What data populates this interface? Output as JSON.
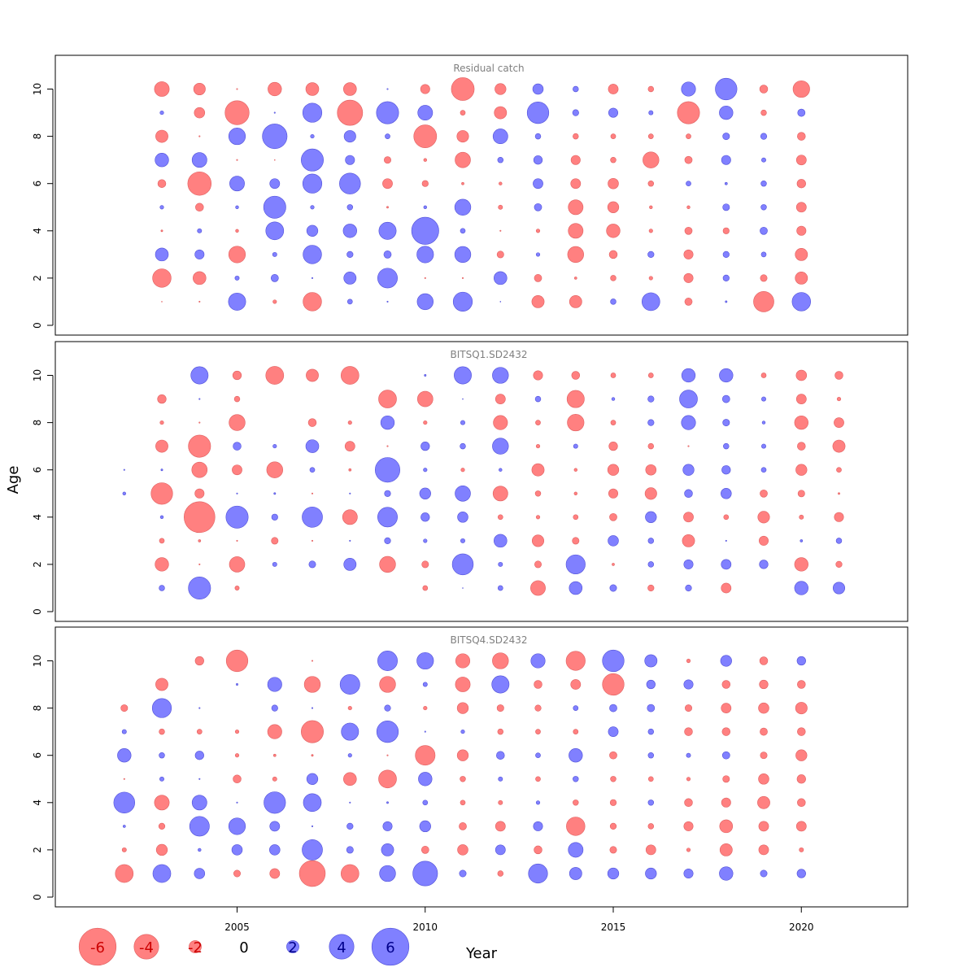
{
  "chart_data": {
    "type": "scatter",
    "subtype": "bubble",
    "xlabel": "Year",
    "ylabel": "Age",
    "xlim": [
      2000,
      2023
    ],
    "ylim": [
      0,
      11
    ],
    "x_ticks": [
      2005,
      2010,
      2015,
      2020
    ],
    "y_ticks": [
      0,
      2,
      4,
      6,
      8,
      10
    ],
    "x_tick_labels": [
      "2005",
      "2010",
      "2015",
      "2020"
    ],
    "y_tick_labels": [
      "0",
      "2",
      "4",
      "6",
      "8",
      "10"
    ],
    "colors": {
      "negative": "#ff8080",
      "positive": "#8080ff",
      "negative_text": "#cc0000",
      "positive_text": "#00008b"
    },
    "legend": {
      "placement": "bottom-left",
      "values": [
        -6,
        -4,
        -2,
        0,
        2,
        4,
        6
      ],
      "labels": [
        "-6",
        "-4",
        "-2",
        "0",
        "2",
        "4",
        "6"
      ]
    },
    "ages": [
      1,
      2,
      3,
      4,
      5,
      6,
      7,
      8,
      9,
      10
    ],
    "panels": [
      {
        "title": "Residual catch",
        "years": [
          2003,
          2004,
          2005,
          2006,
          2007,
          2008,
          2009,
          2010,
          2011,
          2012,
          2013,
          2014,
          2015,
          2016,
          2017,
          2018,
          2019,
          2020
        ],
        "residuals": [
          [
            -0.1,
            -0.2,
            2.8,
            -0.6,
            -3.0,
            0.8,
            0.2,
            2.6,
            3.1,
            0.1,
            -2.0,
            -2.0,
            0.9,
            2.9,
            -1.2,
            0.3,
            -3.3,
            3.0
          ],
          [
            -3.0,
            -2.1,
            0.7,
            1.2,
            0.2,
            2.0,
            3.2,
            -0.2,
            -0.2,
            2.1,
            -1.2,
            -0.4,
            -0.9,
            -0.6,
            -1.5,
            1.0,
            -1.1,
            -2.0
          ],
          [
            2.1,
            1.5,
            -2.7,
            0.7,
            3.0,
            1.0,
            1.2,
            2.7,
            2.6,
            -1.1,
            0.6,
            -2.6,
            -1.3,
            1.0,
            -1.5,
            1.0,
            0.8,
            -2.0
          ],
          [
            -0.3,
            0.7,
            -0.5,
            2.9,
            1.8,
            2.2,
            2.8,
            4.4,
            0.8,
            -0.2,
            -0.6,
            -2.4,
            -2.2,
            -0.6,
            -1.2,
            -1.0,
            1.2,
            -1.5
          ],
          [
            0.6,
            -1.3,
            0.5,
            3.6,
            0.6,
            0.9,
            -0.3,
            0.5,
            2.6,
            -0.7,
            1.2,
            -2.4,
            -1.8,
            -0.5,
            -0.5,
            1.1,
            0.9,
            -1.6
          ],
          [
            -1.3,
            -3.8,
            2.4,
            1.6,
            3.1,
            3.4,
            -1.6,
            -1.0,
            -0.4,
            -0.5,
            1.6,
            -1.6,
            -1.7,
            -0.9,
            0.8,
            0.4,
            0.9,
            -1.4
          ],
          [
            2.2,
            2.4,
            -0.2,
            -0.1,
            3.6,
            1.5,
            -1.1,
            -0.5,
            -2.5,
            0.9,
            1.4,
            -1.5,
            -0.9,
            -2.6,
            -1.2,
            1.5,
            0.7,
            -1.6
          ],
          [
            -2.0,
            -0.2,
            2.7,
            4.0,
            0.6,
            1.9,
            0.8,
            -3.7,
            -1.9,
            2.4,
            0.9,
            -0.9,
            -0.8,
            -0.8,
            -0.8,
            1.1,
            1.0,
            -1.3
          ],
          [
            0.6,
            -1.7,
            -3.9,
            0.2,
            3.1,
            -4.1,
            3.6,
            2.4,
            -0.8,
            -2.0,
            3.5,
            1.0,
            1.5,
            0.7,
            -3.6,
            2.2,
            -0.9,
            1.2
          ],
          [
            -2.4,
            -1.9,
            -0.2,
            -2.2,
            -2.1,
            -2.1,
            0.2,
            -1.5,
            -3.7,
            -1.8,
            1.7,
            0.9,
            -1.6,
            -0.9,
            2.3,
            3.5,
            -1.3,
            -2.7
          ]
        ]
      },
      {
        "title": "BITSQ1.SD2432",
        "years": [
          2002,
          2003,
          2004,
          2005,
          2006,
          2007,
          2008,
          2009,
          2010,
          2011,
          2012,
          2013,
          2014,
          2015,
          2016,
          2017,
          2018,
          2019,
          2020,
          2021
        ],
        "residuals": [
          [
            null,
            0.9,
            3.6,
            -0.7,
            null,
            null,
            null,
            null,
            -0.8,
            0.1,
            0.8,
            -2.4,
            2.1,
            1.1,
            -1.0,
            1.0,
            -1.6,
            null,
            2.2,
            1.9
          ],
          [
            null,
            -2.2,
            -0.2,
            -2.5,
            0.7,
            1.1,
            2.0,
            -2.6,
            -1.1,
            3.4,
            0.7,
            -1.1,
            3.1,
            -0.4,
            0.9,
            1.5,
            1.6,
            1.4,
            -2.2,
            -1.0
          ],
          [
            null,
            -0.8,
            -0.4,
            -0.2,
            -1.1,
            -0.2,
            0.2,
            1.0,
            0.6,
            0.7,
            2.1,
            -1.9,
            -1.1,
            1.7,
            0.9,
            -2.0,
            0.2,
            -1.5,
            0.4,
            0.9
          ],
          [
            null,
            0.5,
            -5.0,
            3.6,
            1.0,
            3.3,
            -2.4,
            3.2,
            1.4,
            1.7,
            -0.8,
            -0.6,
            -0.8,
            -1.2,
            1.8,
            -1.6,
            -0.8,
            -1.9,
            -0.7,
            -1.5
          ],
          [
            0.5,
            -3.5,
            -1.5,
            0.2,
            0.3,
            -0.2,
            0.2,
            1.0,
            1.8,
            2.5,
            -2.4,
            -0.9,
            -0.5,
            -1.5,
            -1.9,
            1.3,
            1.7,
            -1.2,
            -1.1,
            -0.3
          ],
          [
            0.2,
            0.3,
            -2.5,
            -1.6,
            -2.6,
            0.8,
            -0.4,
            4.0,
            0.6,
            -0.6,
            0.5,
            -2.0,
            -0.5,
            -1.8,
            -1.7,
            1.8,
            1.4,
            0.8,
            -1.8,
            -0.8
          ],
          [
            null,
            -2.0,
            -3.6,
            1.3,
            0.6,
            2.1,
            -1.6,
            -0.2,
            1.4,
            0.9,
            2.6,
            -0.6,
            0.7,
            -1.4,
            -0.9,
            -0.2,
            0.9,
            0.7,
            -1.3,
            -2.0
          ],
          [
            null,
            -0.6,
            -0.2,
            -2.6,
            null,
            -1.3,
            -0.6,
            2.2,
            -0.6,
            0.7,
            -2.3,
            -0.8,
            -2.7,
            -0.8,
            1.0,
            2.3,
            1.1,
            0.5,
            -2.2,
            -1.6
          ],
          [
            null,
            -1.4,
            0.2,
            -0.9,
            null,
            null,
            null,
            -2.9,
            -2.5,
            0.1,
            -1.6,
            0.9,
            -2.8,
            0.5,
            1.0,
            2.9,
            1.2,
            0.7,
            -1.6,
            -0.6
          ],
          [
            null,
            null,
            2.8,
            -1.4,
            -2.9,
            -2.0,
            -2.9,
            null,
            0.3,
            2.8,
            2.6,
            -1.5,
            -1.3,
            -0.8,
            -0.8,
            2.2,
            2.2,
            -0.8,
            -1.7,
            -1.3
          ]
        ]
      },
      {
        "title": "BITSQ4.SD2432",
        "years": [
          2002,
          2003,
          2004,
          2005,
          2006,
          2007,
          2008,
          2009,
          2010,
          2011,
          2012,
          2013,
          2014,
          2015,
          2016,
          2017,
          2018,
          2019,
          2020
        ],
        "residuals": [
          [
            -2.9,
            2.9,
            1.7,
            -1.1,
            -1.6,
            -4.2,
            -2.9,
            2.6,
            4.0,
            1.1,
            -0.9,
            3.1,
            2.0,
            1.8,
            1.8,
            1.5,
            2.2,
            1.1,
            1.4
          ],
          [
            -0.7,
            -1.8,
            0.5,
            1.7,
            1.7,
            3.3,
            1.1,
            2.0,
            -1.2,
            -1.7,
            1.6,
            -1.3,
            2.4,
            -1.1,
            -1.6,
            -0.6,
            -2.0,
            -1.6,
            -0.7
          ],
          [
            0.4,
            -1.0,
            3.2,
            2.7,
            1.6,
            0.2,
            1.0,
            1.5,
            1.8,
            -1.2,
            -1.6,
            1.5,
            -3.0,
            -1.0,
            -0.9,
            -1.5,
            -2.1,
            -1.6,
            -1.6
          ],
          [
            3.4,
            -2.4,
            2.4,
            0.2,
            3.5,
            2.9,
            0.2,
            0.3,
            0.8,
            -0.8,
            -0.7,
            0.6,
            -0.9,
            -1.0,
            0.9,
            -1.3,
            -1.5,
            -2.0,
            -1.3
          ],
          [
            -0.2,
            0.7,
            0.2,
            -1.3,
            -0.7,
            1.8,
            -2.1,
            -2.9,
            2.2,
            -0.9,
            0.7,
            -0.8,
            0.9,
            -0.9,
            -0.8,
            -0.6,
            -1.1,
            -1.7,
            -1.4
          ],
          [
            2.2,
            0.9,
            1.4,
            -0.6,
            -0.4,
            -0.3,
            0.6,
            -0.2,
            -3.2,
            -1.8,
            1.3,
            0.8,
            2.2,
            -1.2,
            0.9,
            0.7,
            1.2,
            -1.1,
            -1.8
          ],
          [
            0.7,
            -0.9,
            -0.8,
            -0.6,
            -2.3,
            -3.6,
            2.8,
            3.5,
            0.2,
            0.6,
            -0.9,
            -0.8,
            -0.8,
            1.6,
            0.9,
            -1.3,
            -1.3,
            -1.2,
            -1.3
          ],
          [
            -1.1,
            3.1,
            0.2,
            null,
            1.0,
            0.2,
            -0.6,
            1.0,
            -0.6,
            -1.8,
            -1.1,
            -1.0,
            0.8,
            1.2,
            1.2,
            -1.1,
            -1.6,
            -1.7,
            -1.9
          ],
          [
            null,
            -2.0,
            null,
            0.3,
            2.3,
            -2.6,
            3.2,
            -2.6,
            0.7,
            -2.4,
            2.8,
            -1.3,
            -1.6,
            -3.5,
            1.4,
            1.5,
            -1.3,
            -1.4,
            -1.3
          ],
          [
            null,
            null,
            -1.4,
            -3.5,
            null,
            -0.2,
            null,
            3.2,
            2.7,
            -2.3,
            -2.6,
            2.3,
            -3.1,
            3.5,
            2.0,
            -0.6,
            1.8,
            -1.3,
            1.4
          ]
        ]
      }
    ]
  }
}
